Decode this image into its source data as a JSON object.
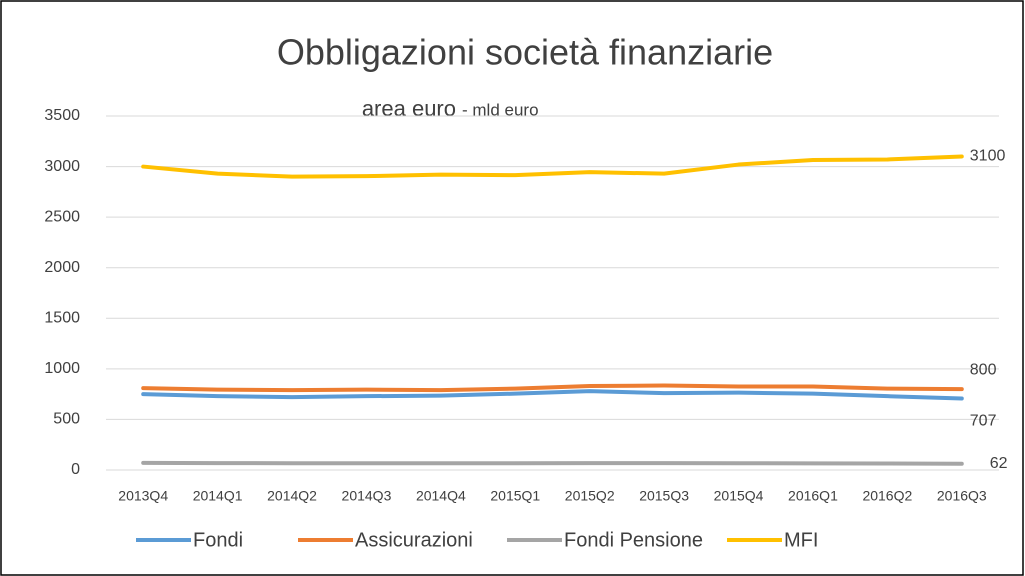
{
  "chart_data": {
    "type": "line",
    "title": "Obbligazioni società finanziarie",
    "subtitle_main": "area euro",
    "subtitle_unit": "- mld euro",
    "categories": [
      "2013Q4",
      "2014Q1",
      "2014Q2",
      "2014Q3",
      "2014Q4",
      "2015Q1",
      "2015Q2",
      "2015Q3",
      "2015Q4",
      "2016Q1",
      "2016Q2",
      "2016Q3"
    ],
    "series": [
      {
        "name": "Fondi",
        "color": "#5b9bd5",
        "values": [
          750,
          730,
          720,
          730,
          735,
          755,
          780,
          760,
          765,
          755,
          730,
          707
        ]
      },
      {
        "name": "Assicurazioni",
        "color": "#ed7d31",
        "values": [
          810,
          795,
          790,
          795,
          790,
          805,
          830,
          835,
          825,
          825,
          805,
          800
        ]
      },
      {
        "name": "Fondi Pensione",
        "color": "#a5a5a5",
        "values": [
          70,
          68,
          67,
          67,
          67,
          67,
          68,
          68,
          67,
          66,
          64,
          62
        ]
      },
      {
        "name": "MFI",
        "color": "#ffc000",
        "values": [
          3000,
          2930,
          2900,
          2905,
          2920,
          2915,
          2945,
          2930,
          3020,
          3065,
          3070,
          3100
        ]
      }
    ],
    "ylim": [
      0,
      3500
    ],
    "yticks": [
      0,
      500,
      1000,
      1500,
      2000,
      2500,
      3000,
      3500
    ],
    "grid": true,
    "legend": "bottom"
  }
}
